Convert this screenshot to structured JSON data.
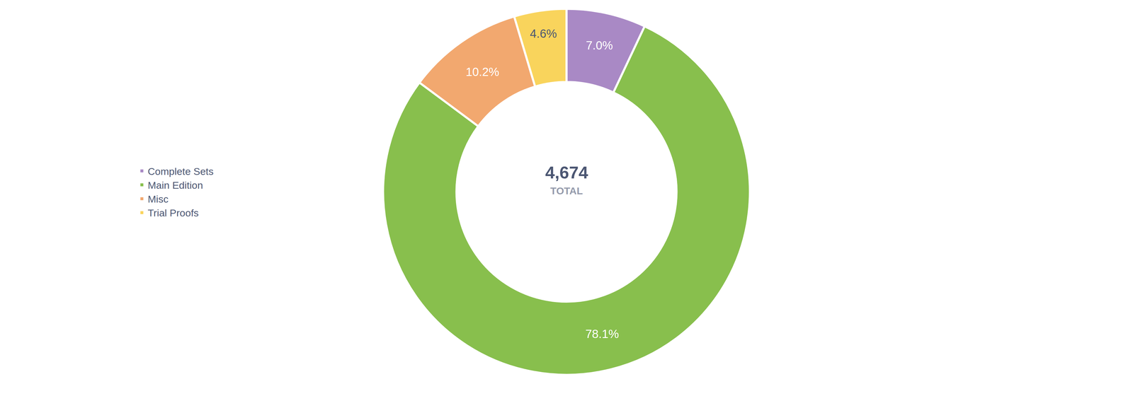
{
  "chart_data": {
    "type": "pie",
    "categories": [
      "Complete Sets",
      "Main Edition",
      "Misc",
      "Trial Proofs"
    ],
    "values": [
      7.0,
      78.1,
      10.2,
      4.6
    ],
    "value_labels": [
      "7.0%",
      "78.1%",
      "10.2%",
      "4.6%"
    ],
    "colors": [
      "#a989c5",
      "#88bf4d",
      "#f2a86f",
      "#f9d45c"
    ],
    "data_labels": true,
    "legend": "left",
    "total": {
      "value": 4674,
      "label": "4,674"
    },
    "total_label": "TOTAL"
  }
}
